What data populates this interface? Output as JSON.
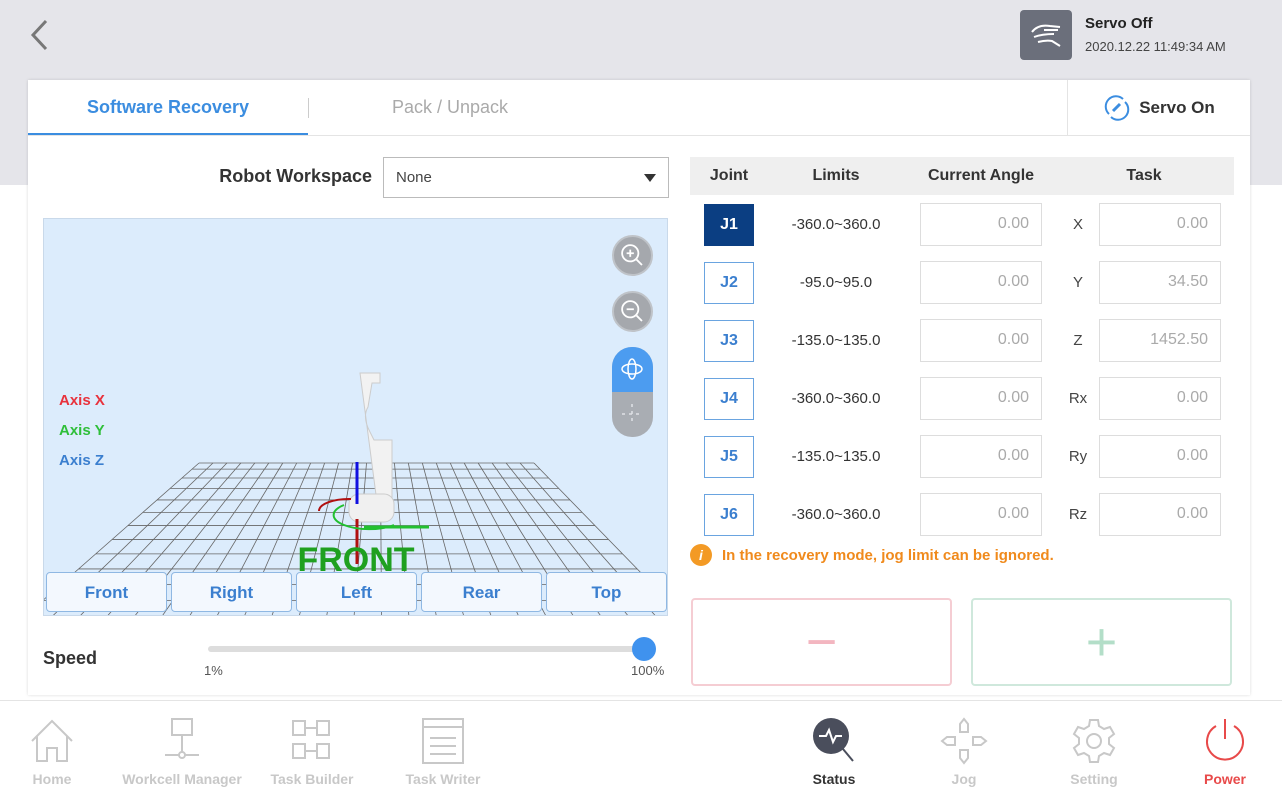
{
  "header": {
    "back_icon": "chevron-left-icon",
    "servo_status": "Servo Off",
    "timestamp": "2020.12.22 11:49:34 AM",
    "status_icon": "hand-icon"
  },
  "tabs": [
    {
      "label": "Software Recovery",
      "active": true
    },
    {
      "label": "Pack / Unpack",
      "active": false
    }
  ],
  "servo_on_label": "Servo On",
  "workspace": {
    "label": "Robot Workspace",
    "value": "None"
  },
  "viewer": {
    "axes": [
      {
        "label": "Axis X",
        "color": "#e8323c"
      },
      {
        "label": "Axis Y",
        "color": "#2fbf3a"
      },
      {
        "label": "Axis Z",
        "color": "#3b7fcf"
      }
    ],
    "floor_text": "FRONT",
    "view_buttons": [
      "Front",
      "Right",
      "Left",
      "Rear",
      "Top"
    ]
  },
  "speed": {
    "label": "Speed",
    "min": "1%",
    "max": "100%",
    "value_percent": 100
  },
  "table": {
    "headers": [
      "Joint",
      "Limits",
      "Current Angle",
      "Task"
    ],
    "rows": [
      {
        "joint": "J1",
        "limits": "-360.0~360.0",
        "angle": "0.00",
        "task_label": "X",
        "task_value": "0.00",
        "selected": true
      },
      {
        "joint": "J2",
        "limits": "-95.0~95.0",
        "angle": "0.00",
        "task_label": "Y",
        "task_value": "34.50"
      },
      {
        "joint": "J3",
        "limits": "-135.0~135.0",
        "angle": "0.00",
        "task_label": "Z",
        "task_value": "1452.50"
      },
      {
        "joint": "J4",
        "limits": "-360.0~360.0",
        "angle": "0.00",
        "task_label": "Rx",
        "task_value": "0.00"
      },
      {
        "joint": "J5",
        "limits": "-135.0~135.0",
        "angle": "0.00",
        "task_label": "Ry",
        "task_value": "0.00"
      },
      {
        "joint": "J6",
        "limits": "-360.0~360.0",
        "angle": "0.00",
        "task_label": "Rz",
        "task_value": "0.00"
      }
    ]
  },
  "warning": "In the recovery mode, jog limit can be ignored.",
  "jog": {
    "minus": "−",
    "plus": "+"
  },
  "nav": [
    {
      "label": "Home"
    },
    {
      "label": "Workcell Manager"
    },
    {
      "label": "Task Builder"
    },
    {
      "label": "Task Writer"
    },
    {
      "label": "Status",
      "active": true
    },
    {
      "label": "Jog"
    },
    {
      "label": "Setting"
    },
    {
      "label": "Power"
    }
  ]
}
